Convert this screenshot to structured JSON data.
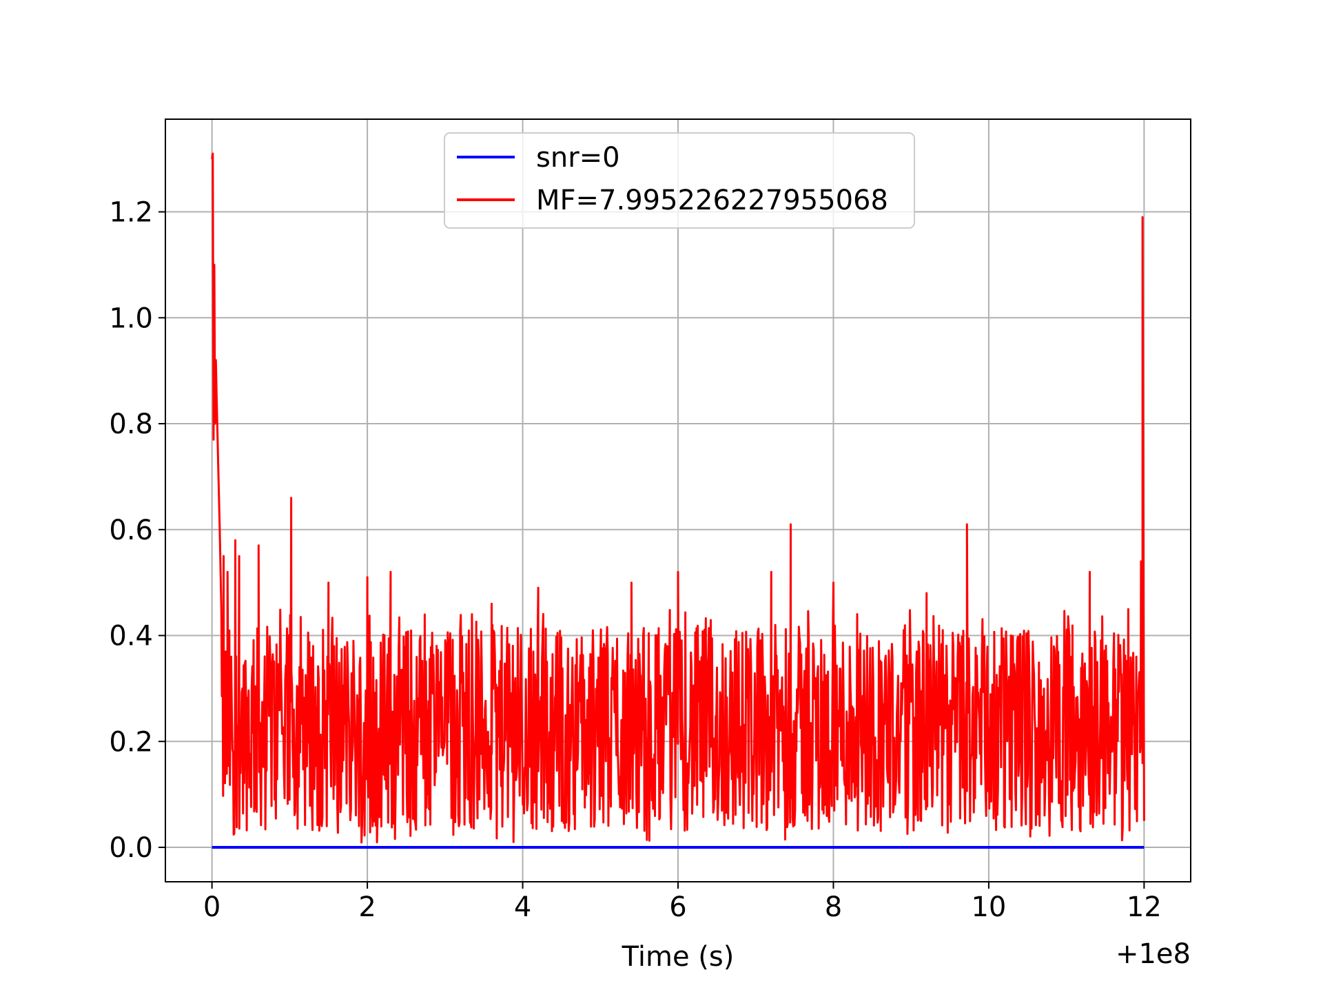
{
  "chart_data": {
    "type": "line",
    "title": "",
    "xlabel": "Time (s)",
    "ylabel": "",
    "x_offset_label": "+1e8",
    "xlim": [
      -0.6,
      12.6
    ],
    "ylim": [
      -0.065,
      1.375
    ],
    "grid": true,
    "legend_position": "upper center",
    "x_ticks": [
      0,
      2,
      4,
      6,
      8,
      10,
      12
    ],
    "x_tick_labels": [
      "0",
      "2",
      "4",
      "6",
      "8",
      "10",
      "12"
    ],
    "y_ticks": [
      0.0,
      0.2,
      0.4,
      0.6,
      0.8,
      1.0,
      1.2
    ],
    "y_tick_labels": [
      "0.0",
      "0.2",
      "0.4",
      "0.6",
      "0.8",
      "1.0",
      "1.2"
    ],
    "series": [
      {
        "name": "snr=0",
        "color": "#0000ff",
        "x": [
          0,
          12
        ],
        "y": [
          0.0,
          0.0
        ]
      },
      {
        "name": "MF=7.995226227955068",
        "color": "#ff0000",
        "noise_range": [
          0.03,
          0.42
        ],
        "x": [
          0.0,
          0.01,
          0.02,
          0.03,
          0.04,
          0.05,
          0.06,
          0.08,
          0.1,
          0.12,
          0.15,
          0.2,
          0.3,
          0.35,
          0.6,
          1.02,
          1.5,
          2.0,
          2.3,
          3.6,
          4.2,
          5.4,
          6.0,
          7.2,
          7.45,
          8.0,
          9.2,
          9.72,
          11.3,
          11.9,
          11.96,
          11.98,
          12.0
        ],
        "y": [
          1.3,
          1.31,
          0.77,
          1.1,
          0.8,
          0.92,
          0.85,
          0.72,
          0.6,
          0.45,
          0.55,
          0.52,
          0.58,
          0.55,
          0.57,
          0.66,
          0.5,
          0.51,
          0.52,
          0.46,
          0.49,
          0.5,
          0.52,
          0.52,
          0.61,
          0.5,
          0.48,
          0.61,
          0.52,
          0.36,
          0.54,
          1.19,
          0.05
        ]
      }
    ]
  }
}
